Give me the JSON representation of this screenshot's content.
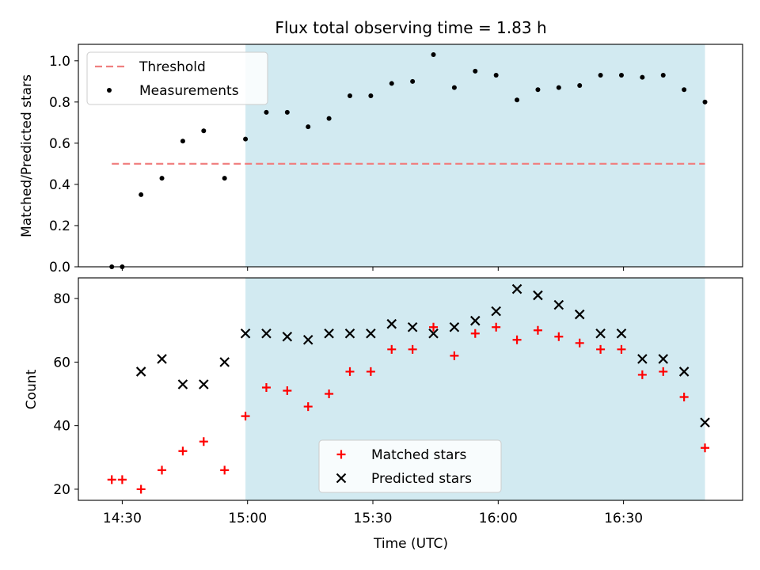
{
  "chart_data": [
    {
      "type": "scatter",
      "title": "Flux total observing time = 1.83 h",
      "ylabel": "Matched/Predicted stars",
      "xlabel": "",
      "x_unit": "UTC time (HH:MM)",
      "xlim": [
        "14:19:30",
        "16:58:30"
      ],
      "ylim": [
        0,
        1.08
      ],
      "yticks": [
        "0.0",
        "0.2",
        "0.4",
        "0.6",
        "0.8",
        "1.0"
      ],
      "shaded_region": {
        "x": [
          "14:59:30",
          "16:49:30"
        ],
        "color": "#add8e6"
      },
      "series": [
        {
          "name": "Threshold",
          "kind": "line",
          "style": "dashed",
          "color": "#f08080",
          "x": [
            "14:27:30",
            "16:49:30"
          ],
          "y": [
            0.5,
            0.5
          ]
        },
        {
          "name": "Measurements",
          "kind": "scatter",
          "marker": "dot",
          "color": "#000000",
          "x": [
            "14:27:30",
            "14:30:00",
            "14:34:30",
            "14:39:30",
            "14:44:30",
            "14:49:30",
            "14:54:30",
            "14:59:30",
            "15:04:30",
            "15:09:30",
            "15:14:30",
            "15:19:30",
            "15:24:30",
            "15:29:30",
            "15:34:30",
            "15:39:30",
            "15:44:30",
            "15:49:30",
            "15:54:30",
            "15:59:30",
            "16:04:30",
            "16:09:30",
            "16:14:30",
            "16:19:30",
            "16:24:30",
            "16:29:30",
            "16:34:30",
            "16:39:30",
            "16:44:30",
            "16:49:30"
          ],
          "y": [
            0.0,
            0.0,
            0.35,
            0.43,
            0.61,
            0.66,
            0.43,
            0.62,
            0.75,
            0.75,
            0.68,
            0.72,
            0.83,
            0.83,
            0.89,
            0.9,
            1.03,
            0.87,
            0.95,
            0.93,
            0.81,
            0.86,
            0.87,
            0.88,
            0.93,
            0.93,
            0.92,
            0.93,
            0.86,
            0.8
          ]
        }
      ],
      "legend": {
        "placement": "upper left"
      }
    },
    {
      "type": "scatter",
      "title": "",
      "ylabel": "Count",
      "xlabel": "Time (UTC)",
      "xlim": [
        "14:19:30",
        "16:58:30"
      ],
      "xticks": [
        "14:30",
        "15:00",
        "15:30",
        "16:00",
        "16:30"
      ],
      "ylim": [
        16.5,
        86.5
      ],
      "yticks": [
        "20",
        "40",
        "60",
        "80"
      ],
      "shaded_region": {
        "x": [
          "14:59:30",
          "16:49:30"
        ],
        "color": "#add8e6"
      },
      "series": [
        {
          "name": "Matched stars",
          "marker": "plus",
          "color": "#ff0000",
          "x": [
            "14:27:30",
            "14:30:00",
            "14:34:30",
            "14:39:30",
            "14:44:30",
            "14:49:30",
            "14:54:30",
            "14:59:30",
            "15:04:30",
            "15:09:30",
            "15:14:30",
            "15:19:30",
            "15:24:30",
            "15:29:30",
            "15:34:30",
            "15:39:30",
            "15:44:30",
            "15:49:30",
            "15:54:30",
            "15:59:30",
            "16:04:30",
            "16:09:30",
            "16:14:30",
            "16:19:30",
            "16:24:30",
            "16:29:30",
            "16:34:30",
            "16:39:30",
            "16:44:30",
            "16:49:30"
          ],
          "y": [
            23,
            23,
            20,
            26,
            32,
            35,
            26,
            43,
            52,
            51,
            46,
            50,
            57,
            57,
            64,
            64,
            71,
            62,
            69,
            71,
            67,
            70,
            68,
            66,
            64,
            64,
            56,
            57,
            49,
            33
          ]
        },
        {
          "name": "Predicted stars",
          "marker": "x",
          "color": "#000000",
          "x": [
            "14:34:30",
            "14:39:30",
            "14:44:30",
            "14:49:30",
            "14:54:30",
            "14:59:30",
            "15:04:30",
            "15:09:30",
            "15:14:30",
            "15:19:30",
            "15:24:30",
            "15:29:30",
            "15:34:30",
            "15:39:30",
            "15:44:30",
            "15:49:30",
            "15:54:30",
            "15:59:30",
            "16:04:30",
            "16:09:30",
            "16:14:30",
            "16:19:30",
            "16:24:30",
            "16:29:30",
            "16:34:30",
            "16:39:30",
            "16:44:30",
            "16:49:30"
          ],
          "y": [
            57,
            61,
            53,
            53,
            60,
            69,
            69,
            68,
            67,
            69,
            69,
            69,
            72,
            71,
            69,
            71,
            73,
            76,
            83,
            81,
            78,
            75,
            69,
            69,
            61,
            61,
            57,
            41
          ]
        }
      ],
      "legend": {
        "placement": "lower center"
      }
    }
  ]
}
